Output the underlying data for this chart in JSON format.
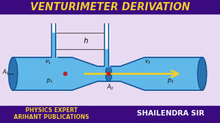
{
  "title": "VENTURIMETER DERIVATION",
  "title_bg": "#3a0a7e",
  "title_color": "#f0c830",
  "body_bg": "#e8daf0",
  "bottom_bg": "#3a0a7e",
  "bottom_left1": "PHYSICS EXPERT",
  "bottom_left2": "ARIHANT PUBLICATIONS",
  "bottom_right": "SHAILENDRA SIR",
  "bottom_text_color": "#f0c830",
  "bottom_right_color": "#ffffff",
  "pipe_color": "#60b8e8",
  "pipe_dark": "#2a72b0",
  "pipe_outline": "#1a5a9a",
  "arrow_color": "#f8d020",
  "label_color": "#111111",
  "dot_color": "#bb2222",
  "h_label": "h"
}
